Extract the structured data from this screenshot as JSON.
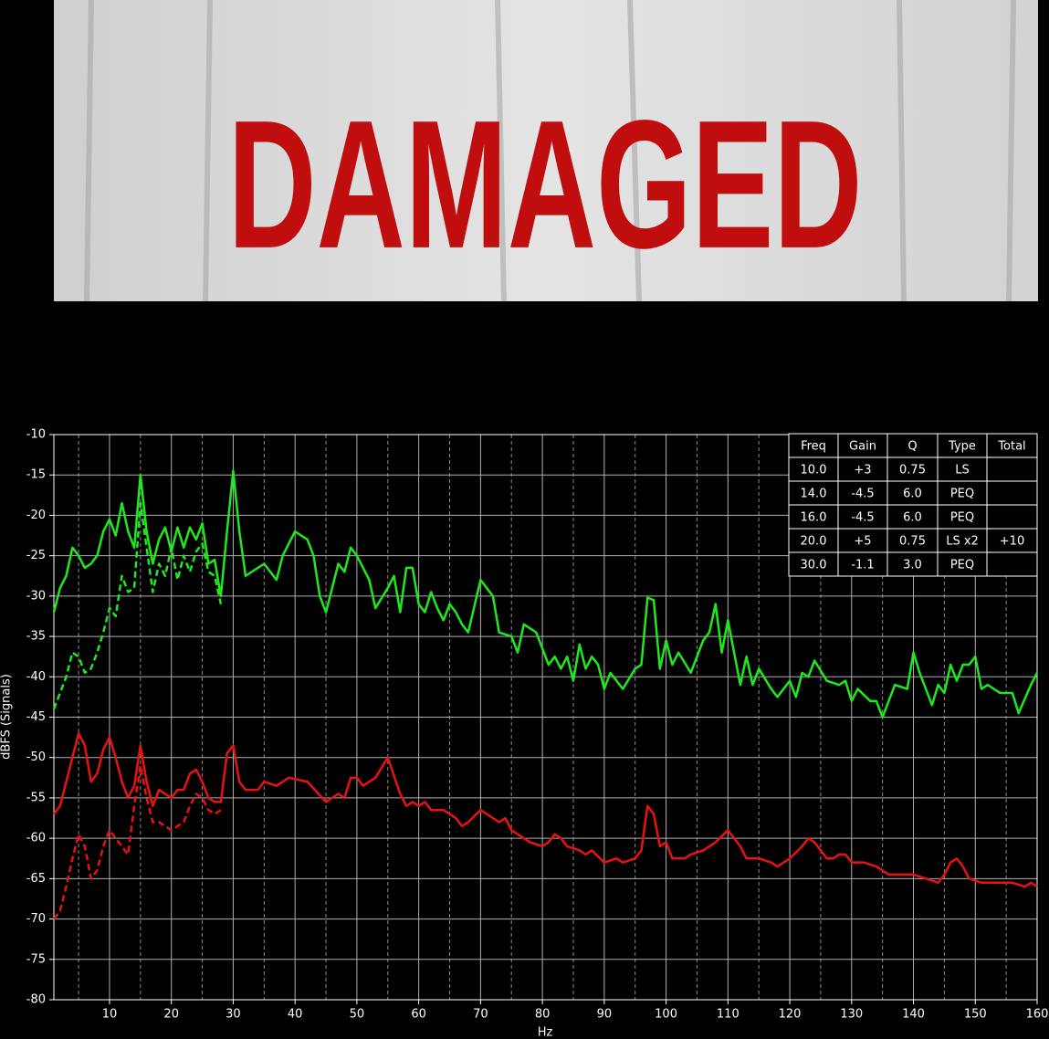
{
  "banner": {
    "title": "DAMAGED"
  },
  "chart_data": {
    "type": "line",
    "xlabel": "Hz",
    "ylabel": "dBFS (Signals)",
    "xlim": [
      1,
      160
    ],
    "ylim": [
      -80,
      -10
    ],
    "xticks": [
      10,
      20,
      30,
      40,
      50,
      60,
      70,
      80,
      90,
      100,
      110,
      120,
      130,
      140,
      150,
      160
    ],
    "xminor": [
      5,
      15,
      25,
      35,
      45,
      55,
      65,
      75,
      85,
      95,
      105,
      115,
      125,
      135,
      145,
      155
    ],
    "yticks": [
      -10,
      -15,
      -20,
      -25,
      -30,
      -35,
      -40,
      -45,
      -50,
      -55,
      -60,
      -65,
      -70,
      -75,
      -80
    ],
    "grid": true,
    "series": [
      {
        "color": "#1ee81e",
        "linestyle": "solid",
        "x": [
          1,
          2,
          3,
          4,
          5,
          6,
          7,
          8,
          9,
          10,
          11,
          12,
          13,
          14,
          15,
          16,
          17,
          18,
          19,
          20,
          21,
          22,
          23,
          24,
          25,
          26,
          27,
          28,
          29,
          30,
          31,
          32,
          34,
          35,
          37,
          38,
          40,
          42,
          43,
          44,
          45,
          46,
          47,
          48,
          49,
          50,
          52,
          53,
          55,
          56,
          57,
          58,
          59,
          60,
          61,
          62,
          63,
          64,
          65,
          66,
          67,
          68,
          70,
          72,
          73,
          75,
          76,
          77,
          79,
          81,
          82,
          83,
          84,
          85,
          86,
          87,
          88,
          89,
          90,
          91,
          93,
          95,
          96,
          97,
          98,
          99,
          100,
          101,
          102,
          104,
          106,
          107,
          108,
          109,
          110,
          111,
          112,
          113,
          114,
          115,
          117,
          118,
          120,
          121,
          122,
          123,
          124,
          126,
          128,
          129,
          130,
          131,
          133,
          134,
          135,
          137,
          139,
          140,
          141,
          143,
          144,
          145,
          146,
          147,
          148,
          149,
          150,
          151,
          152,
          154,
          156,
          157,
          159,
          160
        ],
        "values": [
          -32,
          -29,
          -27.5,
          -24,
          -25,
          -26.5,
          -26,
          -25,
          -22,
          -20.5,
          -22.5,
          -18.5,
          -22,
          -24,
          -15,
          -22,
          -26,
          -23,
          -21.5,
          -24.5,
          -21.5,
          -24,
          -21.5,
          -23,
          -21,
          -26,
          -25.5,
          -30,
          -22,
          -14.5,
          -22,
          -27.5,
          -26.5,
          -26,
          -28,
          -25,
          -22,
          -23,
          -25,
          -30,
          -32,
          -29,
          -26,
          -27,
          -24,
          -25,
          -28,
          -31.5,
          -29,
          -27.5,
          -32,
          -26.5,
          -26.5,
          -31,
          -32,
          -29.5,
          -31.5,
          -33,
          -31,
          -32,
          -33.5,
          -34.5,
          -28,
          -30,
          -34.5,
          -35,
          -37,
          -33.5,
          -34.5,
          -38.5,
          -37.5,
          -39,
          -37.5,
          -40.5,
          -36,
          -39,
          -37.5,
          -38.5,
          -41.5,
          -39.5,
          -41.5,
          -39,
          -38.5,
          -30.2,
          -30.5,
          -39,
          -35.5,
          -38.5,
          -37,
          -39.5,
          -35.5,
          -34.5,
          -31,
          -37,
          -33,
          -37,
          -41,
          -37.5,
          -41,
          -39,
          -41.5,
          -42.5,
          -40.5,
          -42.5,
          -39.5,
          -40,
          -38,
          -40.5,
          -41,
          -40.5,
          -43,
          -41.5,
          -43,
          -43,
          -45,
          -41,
          -41.5,
          -37,
          -39.5,
          -43.5,
          -41,
          -42,
          -38.5,
          -40.5,
          -38.5,
          -38.5,
          -37.5,
          -41.5,
          -41,
          -42,
          -42,
          -44.5,
          -41,
          -39.5
        ]
      },
      {
        "color": "#1ee81e",
        "linestyle": "dashed",
        "x": [
          1,
          2,
          3,
          4,
          5,
          6,
          7,
          8,
          9,
          10,
          11,
          12,
          13,
          14,
          15,
          16,
          17,
          18,
          19,
          20,
          21,
          22,
          23,
          24,
          25,
          26,
          27,
          28
        ],
        "values": [
          -44,
          -42,
          -40,
          -37,
          -37.5,
          -39.5,
          -39,
          -37,
          -34.5,
          -31.5,
          -32.5,
          -27.5,
          -29.5,
          -29,
          -18.5,
          -24,
          -29.5,
          -26,
          -27.5,
          -24,
          -28,
          -25,
          -27,
          -24.5,
          -23.5,
          -27,
          -27.5,
          -31
        ]
      },
      {
        "color": "#e81212",
        "linestyle": "solid",
        "x": [
          1,
          2,
          3,
          4,
          5,
          6,
          7,
          8,
          9,
          10,
          11,
          12,
          13,
          14,
          15,
          16,
          17,
          18,
          19,
          20,
          21,
          22,
          23,
          24,
          25,
          26,
          27,
          28,
          29,
          30,
          31,
          32,
          34,
          35,
          37,
          39,
          42,
          45,
          47,
          48,
          49,
          50,
          51,
          53,
          55,
          57,
          58,
          59,
          60,
          61,
          62,
          64,
          66,
          67,
          68,
          70,
          71,
          72,
          73,
          74,
          75,
          77,
          78,
          80,
          81,
          82,
          83,
          84,
          86,
          87,
          88,
          90,
          92,
          93,
          95,
          96,
          97,
          98,
          99,
          100,
          101,
          103,
          104,
          106,
          108,
          110,
          112,
          113,
          114,
          115,
          117,
          118,
          120,
          122,
          123,
          124,
          126,
          127,
          128,
          129,
          130,
          132,
          134,
          136,
          138,
          140,
          142,
          144,
          145,
          146,
          147,
          148,
          149,
          151,
          153,
          156,
          158,
          159,
          160
        ],
        "values": [
          -57,
          -56,
          -53,
          -50,
          -47,
          -48.5,
          -53,
          -52,
          -49,
          -47.5,
          -50,
          -53,
          -55,
          -53.5,
          -48.5,
          -53,
          -56,
          -54,
          -54.5,
          -55,
          -54,
          -54,
          -52,
          -51.5,
          -53,
          -55,
          -55.5,
          -55.5,
          -49.5,
          -48.5,
          -53,
          -54,
          -54,
          -53,
          -53.5,
          -52.5,
          -53,
          -55.5,
          -54.5,
          -55,
          -52.5,
          -52.5,
          -53.5,
          -52.5,
          -50,
          -54.5,
          -56,
          -55.5,
          -56,
          -55.5,
          -56.5,
          -56.5,
          -57.5,
          -58.5,
          -58,
          -56.5,
          -57,
          -57.5,
          -58,
          -57.5,
          -59,
          -60,
          -60.5,
          -61,
          -60.5,
          -59.5,
          -60,
          -61,
          -61.5,
          -62,
          -61.5,
          -63,
          -62.5,
          -63,
          -62.5,
          -61.5,
          -56,
          -57,
          -61,
          -60.5,
          -62.5,
          -62.5,
          -62,
          -61.5,
          -60.5,
          -59,
          -61,
          -62.5,
          -62.5,
          -62.5,
          -63,
          -63.5,
          -62.5,
          -61,
          -60,
          -60.5,
          -62.5,
          -62.5,
          -62,
          -62,
          -63,
          -63,
          -63.5,
          -64.5,
          -64.5,
          -64.5,
          -65,
          -65.5,
          -64.5,
          -63,
          -62.5,
          -63.5,
          -65,
          -65.5,
          -65.5,
          -65.5,
          -66,
          -65.5,
          -66
        ]
      },
      {
        "color": "#e81212",
        "linestyle": "dashed",
        "x": [
          1,
          2,
          3,
          4,
          5,
          6,
          7,
          8,
          9,
          10,
          11,
          12,
          13,
          14,
          15,
          16,
          17,
          18,
          19,
          20,
          21,
          22,
          23,
          24,
          25,
          26,
          27,
          28
        ],
        "values": [
          -70,
          -69,
          -66,
          -62.5,
          -59.5,
          -61,
          -65,
          -64,
          -61,
          -59,
          -60,
          -61,
          -62,
          -56,
          -51,
          -55,
          -58,
          -58,
          -58.5,
          -59,
          -58.5,
          -58,
          -56,
          -54.5,
          -55,
          -56.5,
          -57,
          -56.5
        ]
      }
    ],
    "table": {
      "columns": [
        "Freq",
        "Gain",
        "Q",
        "Type",
        "Total"
      ],
      "rows": [
        [
          "10.0",
          "+3",
          "0.75",
          "LS",
          null
        ],
        [
          "14.0",
          "-4.5",
          "6.0",
          "PEQ",
          null
        ],
        [
          "16.0",
          "-4.5",
          "6.0",
          "PEQ",
          null
        ],
        [
          "20.0",
          "+5",
          "0.75",
          "LS x2",
          "+10"
        ],
        [
          "30.0",
          "-1.1",
          "3.0",
          "PEQ",
          null
        ]
      ]
    }
  }
}
